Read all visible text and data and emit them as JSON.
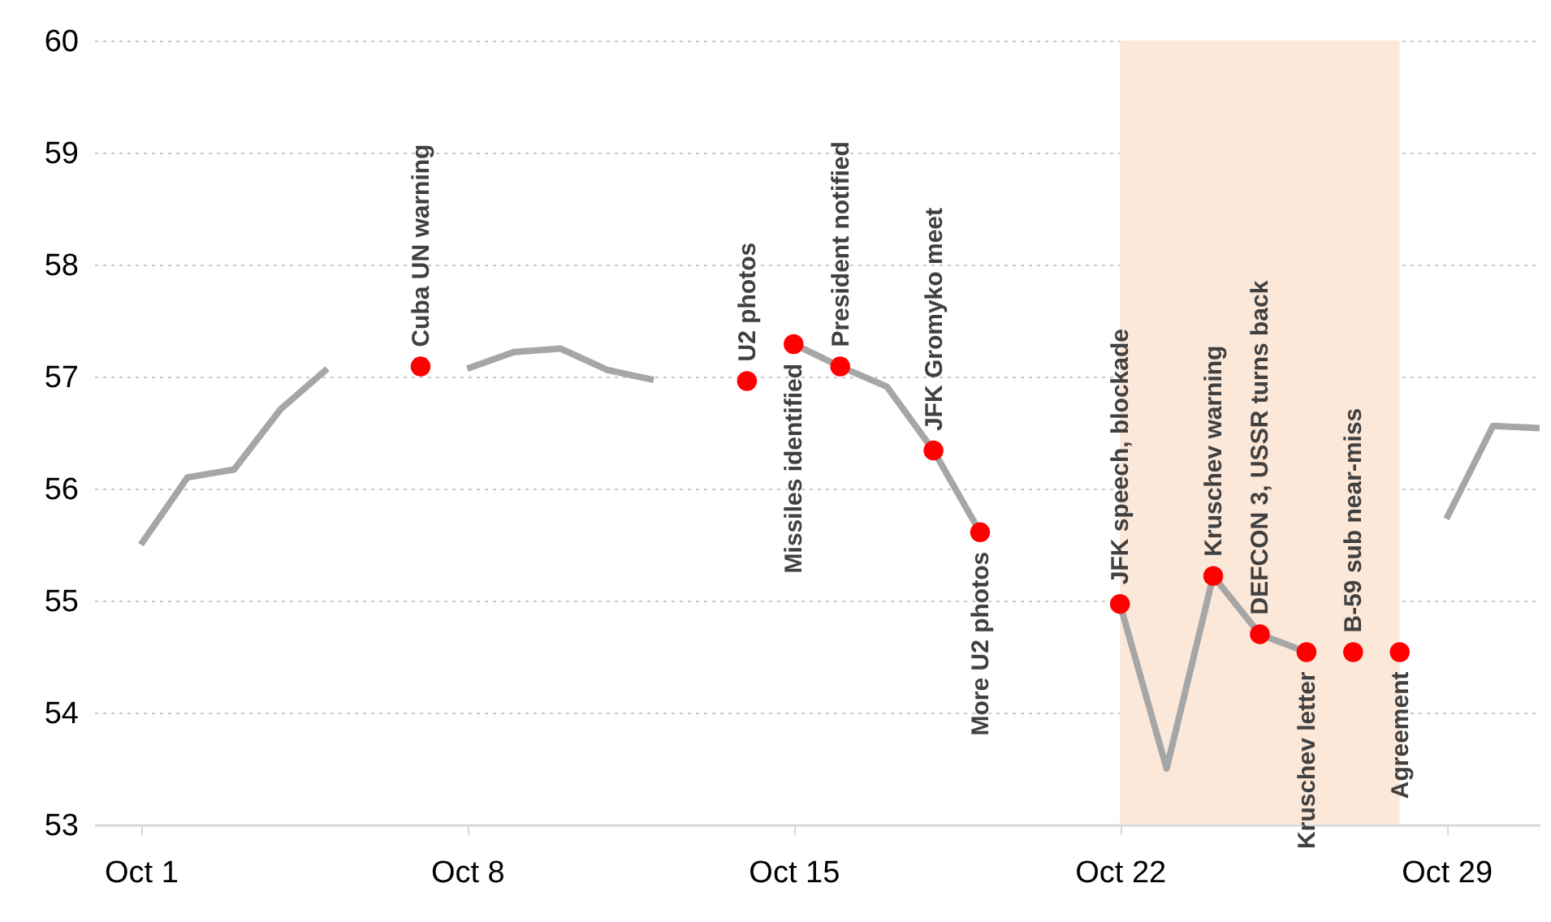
{
  "chart_data": {
    "type": "line",
    "x": [
      "--10-01",
      "--10-02",
      "--10-03",
      "--10-04",
      "--10-05",
      "--10-06",
      "--10-07",
      "--10-08",
      "--10-09",
      "--10-10",
      "--10-11",
      "--10-12",
      "--10-13",
      "--10-14",
      "--10-15",
      "--10-16",
      "--10-17",
      "--10-18",
      "--10-19",
      "--10-20",
      "--10-21",
      "--10-22",
      "--10-23",
      "--10-24",
      "--10-25",
      "--10-26",
      "--10-27",
      "--10-28",
      "--10-29",
      "--10-30",
      "--10-31"
    ],
    "series": [
      {
        "color": "#a6a6a6",
        "values": [
          55.5,
          56.1,
          56.17,
          56.71,
          57.07,
          null,
          null,
          57.07,
          57.22,
          57.25,
          57.06,
          56.97,
          null,
          null,
          57.29,
          57.09,
          56.91,
          56.34,
          55.61,
          null,
          null,
          54.97,
          53.5,
          55.22,
          54.7,
          54.54,
          null,
          null,
          55.73,
          56.56,
          56.54
        ]
      },
      {
        "type": "scatter",
        "color": "#ff0000",
        "marker": "circle",
        "x": [
          "--10-07",
          "--10-14",
          "--10-15",
          "--10-16",
          "--10-18",
          "--10-19",
          "--10-22",
          "--10-24",
          "--10-25",
          "--10-26",
          "--10-27",
          "--10-28"
        ],
        "values": [
          57.09,
          56.96,
          57.29,
          57.09,
          56.34,
          55.61,
          54.97,
          55.22,
          54.7,
          54.54,
          54.54,
          54.54
        ]
      }
    ],
    "annotations": [
      {
        "text": "Cuba UN warning",
        "x": "--10-07",
        "y": 57.09
      },
      {
        "text": "U2 photos",
        "x": "--10-14",
        "y": 56.96
      },
      {
        "text": "Missiles identified",
        "x": "--10-15",
        "y": 57.29
      },
      {
        "text": "President  notified",
        "x": "--10-16",
        "y": 57.09
      },
      {
        "text": "JFK Gromyko  meet",
        "x": "--10-18",
        "y": 56.34
      },
      {
        "text": "More  U2 photos",
        "x": "--10-19",
        "y": 55.61
      },
      {
        "text": "JFK speech, blockade",
        "x": "--10-22",
        "y": 54.97
      },
      {
        "text": "Kruschev  warning",
        "x": "--10-24",
        "y": 55.22
      },
      {
        "text": "DEFCON 3, USSR turns  back",
        "x": "--10-25",
        "y": 54.7
      },
      {
        "text": "Kruschev  letter",
        "x": "--10-26",
        "y": 54.54
      },
      {
        "text": "B-59 sub near-miss",
        "x": "--10-27",
        "y": 54.54
      },
      {
        "text": "Agreement",
        "x": "--10-28",
        "y": 54.54
      }
    ],
    "bands": [
      {
        "axis": "x",
        "from": "--10-22",
        "to": "--10-28",
        "color": "#fce8d9"
      }
    ],
    "xlim": [
      "--09-30",
      "--10-31"
    ],
    "xticks": [
      {
        "value": "--10-01",
        "label": "Oct 1"
      },
      {
        "value": "--10-08",
        "label": "Oct 8"
      },
      {
        "value": "--10-15",
        "label": "Oct 15"
      },
      {
        "value": "--10-22",
        "label": "Oct 22"
      },
      {
        "value": "--10-29",
        "label": "Oct 29"
      }
    ],
    "ylim": [
      53,
      60
    ],
    "yticks": [
      53,
      54,
      55,
      56,
      57,
      58,
      59,
      60
    ],
    "grid": "y",
    "line_style": "solid"
  }
}
